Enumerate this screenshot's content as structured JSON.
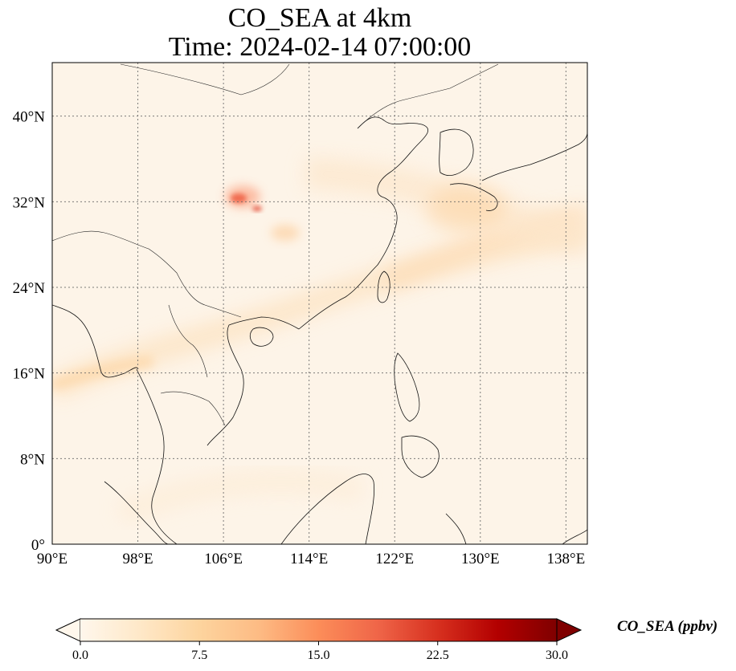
{
  "title": {
    "line1": "CO_SEA at 4km",
    "line2": "Time: 2024-02-14 07:00:00"
  },
  "map": {
    "lon_range": [
      90,
      140
    ],
    "lat_range": [
      0,
      45
    ],
    "lon_ticks": [
      {
        "value": 90,
        "label": "90°E"
      },
      {
        "value": 98,
        "label": "98°E"
      },
      {
        "value": 106,
        "label": "106°E"
      },
      {
        "value": 114,
        "label": "114°E"
      },
      {
        "value": 122,
        "label": "122°E"
      },
      {
        "value": 130,
        "label": "130°E"
      },
      {
        "value": 138,
        "label": "138°E"
      }
    ],
    "lat_ticks": [
      {
        "value": 0,
        "label": "0°"
      },
      {
        "value": 8,
        "label": "8°N"
      },
      {
        "value": 16,
        "label": "16°N"
      },
      {
        "value": 24,
        "label": "24°N"
      },
      {
        "value": 32,
        "label": "32°N"
      },
      {
        "value": 40,
        "label": "40°N"
      }
    ],
    "gridlines": true,
    "background_color": "#fdf4e8"
  },
  "colorbar": {
    "label": "CO_SEA (ppbv)",
    "min": 0,
    "max": 30,
    "ticks": [
      "0.0",
      "7.5",
      "15.0",
      "22.5",
      "30.0"
    ],
    "colormap": "OrRd",
    "colors": [
      "#fff7ec",
      "#fee8c8",
      "#fdd49e",
      "#fdbb84",
      "#fc8d59",
      "#ef6548",
      "#d7301f",
      "#b30000",
      "#7f0000"
    ],
    "extend": "both"
  }
}
